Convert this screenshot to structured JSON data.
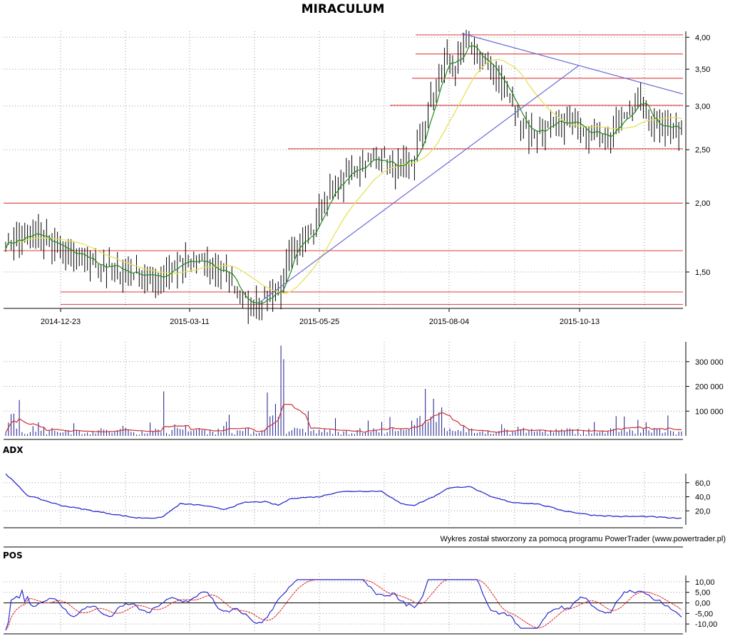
{
  "chart_data": [
    {
      "panel": "price",
      "type": "ohlc",
      "title": "MIRACULUM",
      "xticks": [
        "2014-12-23",
        "2015-03-11",
        "2015-05-25",
        "2015-08-04",
        "2015-10-13"
      ],
      "yticks": [
        "4,00",
        "3,50",
        "3,00",
        "2,50",
        "2,00",
        "1,50"
      ],
      "ylim": [
        1.3,
        4.1
      ],
      "yscale": "log",
      "keypoints": [
        [
          0,
          1.7
        ],
        [
          12,
          1.75
        ],
        [
          25,
          1.6
        ],
        [
          40,
          1.52
        ],
        [
          55,
          1.47
        ],
        [
          64,
          1.55
        ],
        [
          72,
          1.56
        ],
        [
          82,
          1.48
        ],
        [
          88,
          1.32
        ],
        [
          98,
          1.33
        ],
        [
          101,
          1.4
        ],
        [
          104,
          1.65
        ],
        [
          112,
          1.75
        ],
        [
          118,
          2.05
        ],
        [
          128,
          2.32
        ],
        [
          134,
          2.4
        ],
        [
          140,
          2.4
        ],
        [
          143,
          2.28
        ],
        [
          150,
          2.4
        ],
        [
          155,
          2.9
        ],
        [
          162,
          3.7
        ],
        [
          165,
          3.55
        ],
        [
          170,
          3.9
        ],
        [
          175,
          3.6
        ],
        [
          180,
          3.45
        ],
        [
          186,
          3.0
        ],
        [
          192,
          2.7
        ],
        [
          200,
          2.75
        ],
        [
          210,
          2.8
        ],
        [
          220,
          2.65
        ],
        [
          226,
          2.8
        ],
        [
          232,
          3.1
        ],
        [
          236,
          2.85
        ],
        [
          248,
          2.7
        ]
      ],
      "overlays": [
        "moving-average-short",
        "moving-average-long"
      ],
      "colors": {
        "bars": "#000000",
        "ma_short": "#1d8a1d",
        "ma_long": "#e6e05a",
        "support_resistance": "#e05050",
        "trendline": "#6a6ad8"
      }
    },
    {
      "panel": "volume",
      "type": "bar",
      "yticks": [
        "300 000",
        "200 000",
        "100 000"
      ],
      "ylim": [
        0,
        380000
      ],
      "colors": {
        "bars": "#1a1a8a",
        "average": "#d03030"
      }
    },
    {
      "panel": "ADX",
      "type": "line",
      "title": "ADX",
      "yticks": [
        "60,0",
        "40,0",
        "20,0"
      ],
      "ylim": [
        0,
        75
      ],
      "keypoints": [
        [
          0,
          73
        ],
        [
          8,
          42
        ],
        [
          20,
          28
        ],
        [
          35,
          18
        ],
        [
          48,
          10
        ],
        [
          57,
          10
        ],
        [
          64,
          30
        ],
        [
          72,
          28
        ],
        [
          80,
          22
        ],
        [
          88,
          32
        ],
        [
          95,
          33
        ],
        [
          100,
          28
        ],
        [
          105,
          38
        ],
        [
          115,
          40
        ],
        [
          122,
          47
        ],
        [
          128,
          48
        ],
        [
          138,
          48
        ],
        [
          145,
          30
        ],
        [
          150,
          28
        ],
        [
          158,
          42
        ],
        [
          162,
          52
        ],
        [
          170,
          55
        ],
        [
          178,
          40
        ],
        [
          186,
          32
        ],
        [
          195,
          30
        ],
        [
          205,
          20
        ],
        [
          215,
          14
        ],
        [
          225,
          12
        ],
        [
          235,
          12
        ],
        [
          248,
          9
        ]
      ],
      "colors": {
        "line": "#2b2bd0"
      }
    },
    {
      "panel": "POS",
      "type": "line",
      "title": "POS",
      "yticks": [
        "10,00",
        "5,00",
        "0,00",
        "-5,00",
        "-10,00"
      ],
      "ylim": [
        -14,
        14
      ],
      "series_count": 2,
      "colors": {
        "line_1": "#2b2bd0",
        "line_2": "#e03030",
        "zero": "#000000"
      }
    }
  ],
  "credit": "Wykres został stworzony za pomocą programu PowerTrader (www.powertrader.pl)"
}
